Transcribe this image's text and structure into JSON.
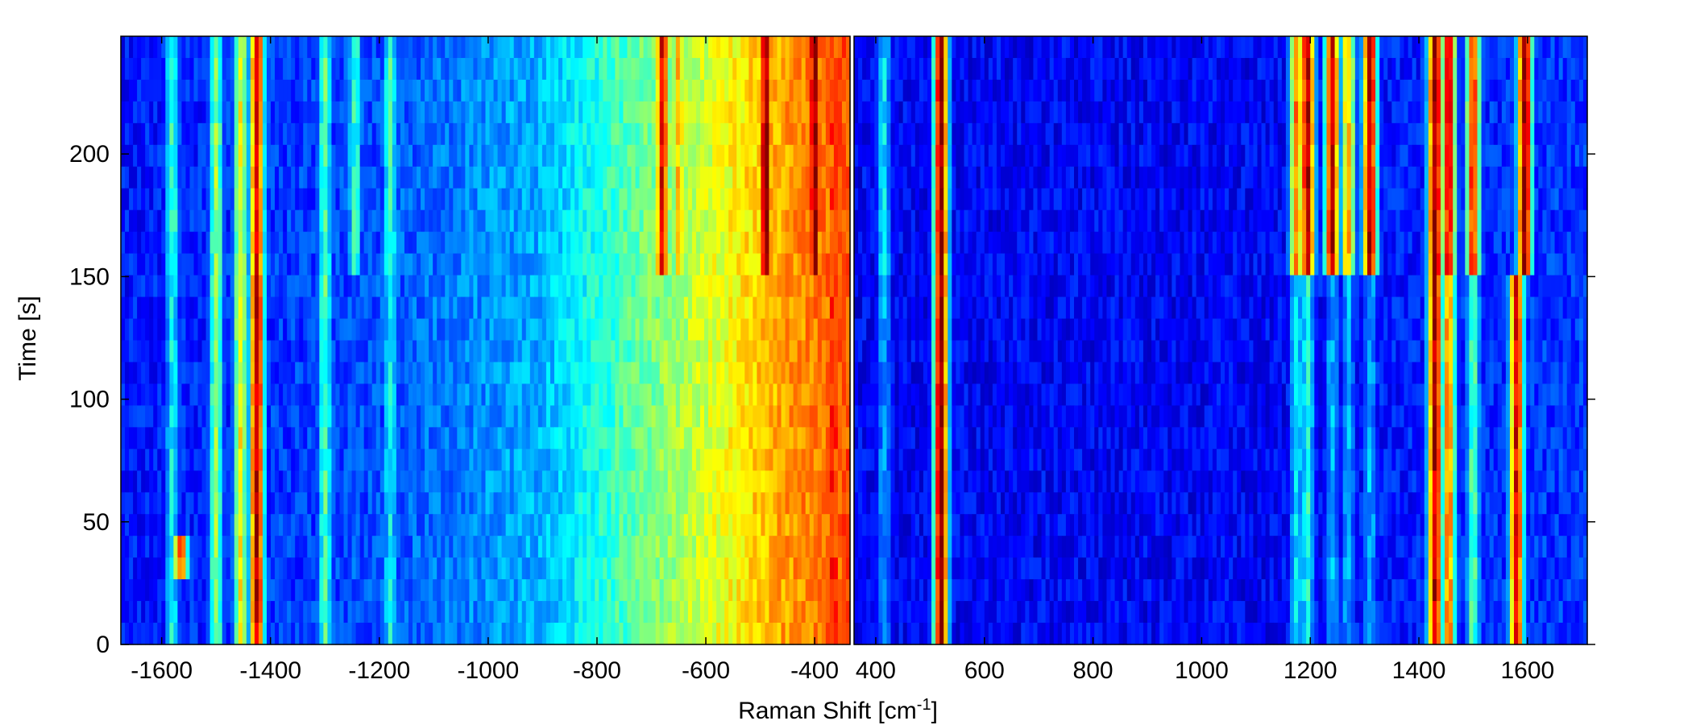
{
  "chart_data": [
    {
      "type": "heatmap",
      "panel": "left",
      "xlabel": "",
      "ylabel": "Time [s]",
      "xlim": [
        -1675,
        -335
      ],
      "ylim": [
        0,
        248
      ],
      "x_ticks": [
        -1600,
        -1400,
        -1200,
        -1000,
        -800,
        -600,
        -400
      ],
      "x_tick_labels": [
        "-1600",
        "-1400",
        "-1200",
        "-1000",
        "-800",
        "-600",
        "-400"
      ],
      "y_ticks": [
        0,
        50,
        100,
        150,
        200
      ],
      "y_tick_labels": [
        "0",
        "50",
        "100",
        "150",
        "200"
      ],
      "colormap": "jet",
      "time_segments": [
        [
          0,
          150
        ],
        [
          150,
          248
        ]
      ],
      "baseline_by_x": [
        [
          -1675,
          0.14
        ],
        [
          -1200,
          0.2
        ],
        [
          -900,
          0.3
        ],
        [
          -750,
          0.45
        ],
        [
          -600,
          0.58
        ],
        [
          -450,
          0.72
        ],
        [
          -335,
          0.8
        ]
      ],
      "peaks": [
        {
          "x": -1580,
          "i_low": 0.38,
          "i_high": 0.44
        },
        {
          "x": -1565,
          "i_low": 0.82,
          "i_high": 0.0,
          "t_range": [
            25,
            45
          ]
        },
        {
          "x": -1500,
          "i_low": 0.52,
          "i_high": 0.52
        },
        {
          "x": -1455,
          "i_low": 0.62,
          "i_high": 0.6
        },
        {
          "x": -1425,
          "i_low": 0.95,
          "i_high": 0.9
        },
        {
          "x": -1300,
          "i_low": 0.45,
          "i_high": 0.46
        },
        {
          "x": -1245,
          "i_low": 0.2,
          "i_high": 0.42
        },
        {
          "x": -1180,
          "i_low": 0.38,
          "i_high": 0.44
        },
        {
          "x": -680,
          "i_low": 0.0,
          "i_high": 0.9
        },
        {
          "x": -650,
          "i_low": 0.0,
          "i_high": 0.7
        },
        {
          "x": -490,
          "i_low": 0.0,
          "i_high": 0.98
        },
        {
          "x": -400,
          "i_low": 0.0,
          "i_high": 1.0
        },
        {
          "x": -365,
          "i_low": 0.88,
          "i_high": 0.85
        }
      ]
    },
    {
      "type": "heatmap",
      "panel": "right",
      "xlabel": "Raman Shift [cm^-1]",
      "ylabel": "",
      "xlim": [
        360,
        1710
      ],
      "ylim": [
        0,
        248
      ],
      "x_ticks": [
        400,
        600,
        800,
        1000,
        1200,
        1400,
        1600
      ],
      "x_tick_labels": [
        "400",
        "600",
        "800",
        "1000",
        "1200",
        "1400",
        "1600"
      ],
      "y_ticks": [
        0,
        50,
        100,
        150,
        200
      ],
      "y_tick_labels": [
        "",
        "",
        "",
        "",
        ""
      ],
      "colormap": "jet",
      "time_segments": [
        [
          0,
          150
        ],
        [
          150,
          248
        ]
      ],
      "baseline_by_x": [
        [
          360,
          0.12
        ],
        [
          1100,
          0.12
        ],
        [
          1710,
          0.18
        ]
      ],
      "peaks": [
        {
          "x": 520,
          "i_low": 1.0,
          "i_high": 1.0
        },
        {
          "x": 415,
          "i_low": 0.28,
          "i_high": 0.35
        },
        {
          "x": 1175,
          "i_low": 0.35,
          "i_high": 0.75
        },
        {
          "x": 1195,
          "i_low": 0.4,
          "i_high": 0.95
        },
        {
          "x": 1240,
          "i_low": 0.3,
          "i_high": 0.95
        },
        {
          "x": 1270,
          "i_low": 0.3,
          "i_high": 0.7
        },
        {
          "x": 1310,
          "i_low": 0.3,
          "i_high": 0.95
        },
        {
          "x": 1430,
          "i_low": 0.95,
          "i_high": 1.0
        },
        {
          "x": 1455,
          "i_low": 0.75,
          "i_high": 0.9
        },
        {
          "x": 1500,
          "i_low": 0.45,
          "i_high": 0.85
        },
        {
          "x": 1580,
          "i_low": 0.9,
          "i_high": 0.0
        },
        {
          "x": 1595,
          "i_low": 0.0,
          "i_high": 1.0
        }
      ]
    }
  ]
}
